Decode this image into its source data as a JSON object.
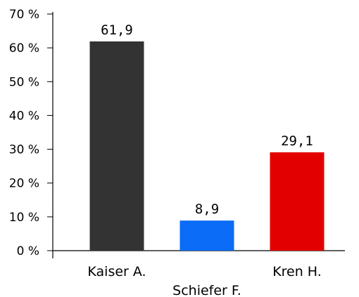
{
  "chart_data": {
    "type": "bar",
    "categories": [
      "Kaiser A.",
      "Schiefer F.",
      "Kren H."
    ],
    "values": [
      61.9,
      8.9,
      29.1
    ],
    "value_labels": [
      "61,9",
      "8,9",
      "29,1"
    ],
    "colors": [
      "#333333",
      "#0a6cf7",
      "#e30000"
    ],
    "y_ticks": [
      0,
      10,
      20,
      30,
      40,
      50,
      60,
      70
    ],
    "y_tick_labels": [
      "0 %",
      "10 %",
      "20 %",
      "30 %",
      "40 %",
      "50 %",
      "60 %",
      "70 %"
    ],
    "ylim": [
      0,
      70
    ],
    "title": "",
    "xlabel": "",
    "ylabel": "",
    "grid": false,
    "legend": "none"
  }
}
